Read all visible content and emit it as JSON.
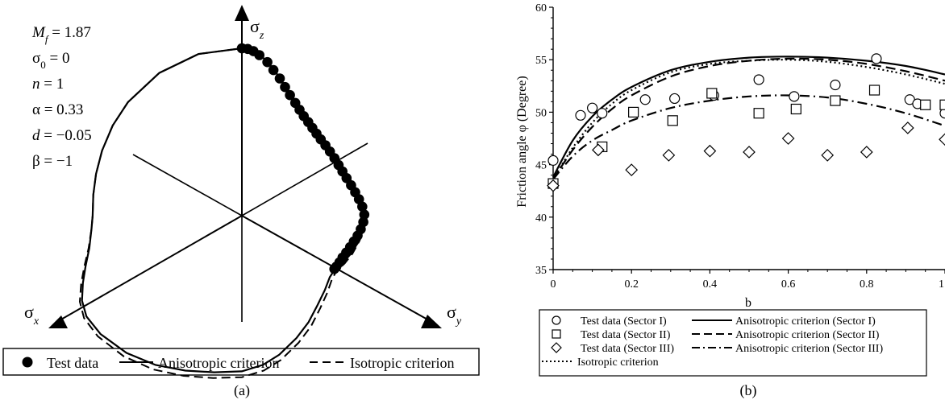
{
  "panel_a": {
    "caption": "(a)",
    "axes": {
      "z": "σ",
      "z_sub": "z",
      "x": "σ",
      "x_sub": "x",
      "y": "σ",
      "y_sub": "y"
    },
    "params": [
      {
        "sym": "M",
        "sub": "f",
        "rest": " = 1.87"
      },
      {
        "sym": "σ",
        "sub": "0",
        "rest": " = 0"
      },
      {
        "sym": "n",
        "sub": "",
        "rest": " = 1"
      },
      {
        "sym": "α",
        "sub": "",
        "rest": " = 0.33"
      },
      {
        "sym": "d",
        "sub": "",
        "rest": " = −0.05"
      },
      {
        "sym": "β",
        "sub": "",
        "rest": " = −1"
      }
    ],
    "legend": [
      "Test data",
      "Anisotropic criterion",
      "Isotropic criterion"
    ]
  },
  "panel_b": {
    "caption": "(b)",
    "legend": [
      "Test data (Sector I)",
      "Anisotropic criterion (Sector I)",
      "Test data (Sector II)",
      "Anisotropic criterion (Sector II)",
      "Test data (Sector III)",
      "Anisotropic criterion (Sector III)",
      "Isotropic criterion"
    ]
  },
  "chart_data": [
    {
      "type": "scatter",
      "projection": "deviatoric plane (π-plane)",
      "series": [
        {
          "name": "Test data",
          "marker": "filled-circle",
          "points_r_theta_deg": [
            [
              1.0,
              90
            ],
            [
              0.997,
              88
            ],
            [
              0.985,
              86
            ],
            [
              0.965,
              83.8
            ],
            [
              0.93,
              80.6
            ],
            [
              0.89,
              77.8
            ],
            [
              0.85,
              74.6
            ],
            [
              0.81,
              71.5
            ],
            [
              0.775,
              68.3
            ],
            [
              0.745,
              64.7
            ],
            [
              0.72,
              61.5
            ],
            [
              0.7,
              58.2
            ],
            [
              0.685,
              54.7
            ],
            [
              0.672,
              51.3
            ],
            [
              0.662,
              47.8
            ],
            [
              0.655,
              44.1
            ],
            [
              0.652,
              40.2
            ],
            [
              0.65,
              36.1
            ],
            [
              0.65,
              31.9
            ],
            [
              0.651,
              27.7
            ],
            [
              0.655,
              23.8
            ],
            [
              0.663,
              19.8
            ],
            [
              0.676,
              15.6
            ],
            [
              0.69,
              11.7
            ],
            [
              0.705,
              8.0
            ],
            [
              0.72,
              4.3
            ],
            [
              0.73,
              0.5
            ],
            [
              0.725,
              -3.0
            ],
            [
              0.713,
              -6.5
            ],
            [
              0.7,
              -9.8
            ],
            [
              0.685,
              -13.0
            ],
            [
              0.672,
              -16.2
            ],
            [
              0.66,
              -19.5
            ],
            [
              0.65,
              -22.6
            ],
            [
              0.645,
              -25.6
            ],
            [
              0.64,
              -28.4
            ],
            [
              0.637,
              -30.0
            ]
          ]
        },
        {
          "name": "Anisotropic criterion",
          "line": "solid"
        },
        {
          "name": "Isotropic criterion",
          "line": "dashed"
        }
      ],
      "model_params": {
        "M_f": 1.87,
        "sigma_0": 0,
        "n": 1,
        "alpha": 0.33,
        "d": -0.05,
        "beta": -1
      }
    },
    {
      "type": "line",
      "xlabel": "b",
      "ylabel": "Friction angle φ (Degree)",
      "xlim": [
        0,
        1.0
      ],
      "ylim": [
        35,
        60
      ],
      "xticks": [
        0,
        0.2,
        0.4,
        0.6,
        0.8,
        1
      ],
      "xtick_labels": [
        "0",
        "0.2",
        "0.4",
        "0.6",
        "0.8",
        "1"
      ],
      "yticks": [
        35,
        40,
        45,
        50,
        55,
        60
      ],
      "series": [
        {
          "name": "Test data (Sector I)",
          "marker": "circle",
          "x": [
            0,
            0.07,
            0.1,
            0.125,
            0.235,
            0.31,
            0.41,
            0.525,
            0.615,
            0.72,
            0.825,
            0.91,
            0.93,
            1.0
          ],
          "y": [
            45.4,
            49.7,
            50.4,
            49.9,
            51.2,
            51.3,
            51.6,
            53.1,
            51.5,
            52.6,
            55.1,
            51.2,
            50.8,
            49.9
          ]
        },
        {
          "name": "Test data (Sector II)",
          "marker": "square",
          "x": [
            0,
            0.125,
            0.205,
            0.305,
            0.405,
            0.525,
            0.62,
            0.72,
            0.82,
            0.95,
            1.0
          ],
          "y": [
            43.2,
            46.7,
            50.0,
            49.2,
            51.8,
            49.9,
            50.3,
            51.1,
            52.1,
            50.7,
            50.7
          ]
        },
        {
          "name": "Test data (Sector III)",
          "marker": "diamond",
          "x": [
            0,
            0.115,
            0.2,
            0.295,
            0.4,
            0.5,
            0.6,
            0.7,
            0.8,
            0.905,
            1.0
          ],
          "y": [
            43.0,
            46.4,
            44.5,
            45.9,
            46.3,
            46.2,
            47.5,
            45.9,
            46.2,
            48.5,
            47.4
          ]
        },
        {
          "name": "Anisotropic criterion (Sector I)",
          "line": "solid",
          "x": [
            0,
            0.05,
            0.1,
            0.15,
            0.2,
            0.3,
            0.4,
            0.5,
            0.6,
            0.7,
            0.8,
            0.9,
            1.0
          ],
          "y": [
            43.8,
            47.3,
            49.6,
            51.2,
            52.4,
            54.0,
            54.8,
            55.2,
            55.3,
            55.2,
            54.9,
            54.4,
            53.6
          ]
        },
        {
          "name": "Anisotropic criterion (Sector II)",
          "line": "dashed",
          "x": [
            0,
            0.05,
            0.1,
            0.15,
            0.2,
            0.3,
            0.4,
            0.5,
            0.6,
            0.7,
            0.8,
            0.9,
            1.0
          ],
          "y": [
            43.6,
            46.4,
            48.6,
            50.3,
            51.6,
            53.4,
            54.4,
            54.9,
            55.1,
            55.0,
            54.6,
            53.9,
            53.0
          ]
        },
        {
          "name": "Anisotropic criterion (Sector III)",
          "line": "dash-dot",
          "x": [
            0,
            0.05,
            0.1,
            0.15,
            0.2,
            0.3,
            0.4,
            0.5,
            0.6,
            0.7,
            0.8,
            0.9,
            1.0
          ],
          "y": [
            43.6,
            45.8,
            47.3,
            48.3,
            49.2,
            50.4,
            51.1,
            51.5,
            51.6,
            51.4,
            50.8,
            49.9,
            48.7
          ]
        },
        {
          "name": "Isotropic criterion",
          "line": "dotted",
          "x": [
            0,
            0.05,
            0.1,
            0.15,
            0.2,
            0.3,
            0.4,
            0.5,
            0.6,
            0.7,
            0.8,
            0.9,
            1.0
          ],
          "y": [
            43.6,
            46.6,
            49.0,
            50.8,
            52.1,
            53.8,
            54.6,
            54.9,
            55.0,
            54.8,
            54.3,
            53.6,
            52.7
          ]
        }
      ]
    }
  ]
}
